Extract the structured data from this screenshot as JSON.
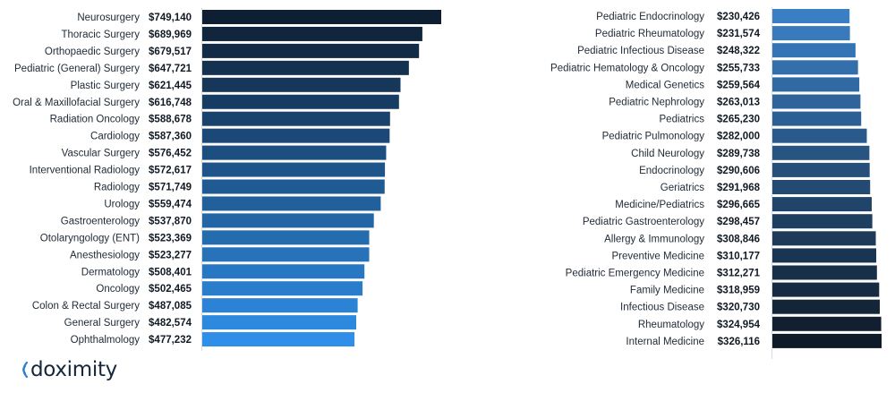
{
  "brand": {
    "name": "doximity",
    "logo_icon": "doximity-signal-icon"
  },
  "chart_data": [
    {
      "type": "bar",
      "orientation": "horizontal",
      "grid": false,
      "colors": {
        "start": "#0f1f33",
        "end": "#2f8fe8"
      },
      "xlim": [
        0,
        760000
      ],
      "categories": [
        "Neurosurgery",
        "Thoracic Surgery",
        "Orthopaedic Surgery",
        "Pediatric (General) Surgery",
        "Plastic Surgery",
        "Oral & Maxillofacial Surgery",
        "Radiation Oncology",
        "Cardiology",
        "Vascular Surgery",
        "Interventional Radiology",
        "Radiology",
        "Urology",
        "Gastroenterology",
        "Otolaryngology (ENT)",
        "Anesthesiology",
        "Dermatology",
        "Oncology",
        "Colon & Rectal Surgery",
        "General Surgery",
        "Ophthalmology"
      ],
      "values": [
        749140,
        689969,
        679517,
        647721,
        621445,
        616748,
        588678,
        587360,
        576452,
        572617,
        571749,
        559474,
        537870,
        523369,
        523277,
        508401,
        502465,
        487085,
        482574,
        477232
      ],
      "value_labels": [
        "$749,140",
        "$689,969",
        "$679,517",
        "$647,721",
        "$621,445",
        "$616,748",
        "$588,678",
        "$587,360",
        "$576,452",
        "$572,617",
        "$571,749",
        "$559,474",
        "$537,870",
        "$523,369",
        "$523,277",
        "$508,401",
        "$502,465",
        "$487,085",
        "$482,574",
        "$477,232"
      ]
    },
    {
      "type": "bar",
      "orientation": "horizontal",
      "grid": false,
      "colors": {
        "start": "#3a7fc4",
        "end": "#0f1a28"
      },
      "xlim": [
        0,
        340000
      ],
      "categories": [
        "Pediatric Endocrinology",
        "Pediatric Rheumatology",
        "Pediatric Infectious Disease",
        "Pediatric Hematology & Oncology",
        "Medical Genetics",
        "Pediatric Nephrology",
        "Pediatrics",
        "Pediatric Pulmonology",
        "Child Neurology",
        "Endocrinology",
        "Geriatrics",
        "Medicine/Pediatrics",
        "Pediatric Gastroenterology",
        "Allergy & Immunology",
        "Preventive Medicine",
        "Pediatric Emergency Medicine",
        "Family Medicine",
        "Infectious Disease",
        "Rheumatology",
        "Internal Medicine"
      ],
      "values": [
        230426,
        231574,
        248322,
        255733,
        259564,
        263013,
        265230,
        282000,
        289738,
        290606,
        291968,
        296665,
        298457,
        308846,
        310177,
        312271,
        318959,
        320730,
        324954,
        326116
      ],
      "value_labels": [
        "$230,426",
        "$231,574",
        "$248,322",
        "$255,733",
        "$259,564",
        "$263,013",
        "$265,230",
        "$282,000",
        "$289,738",
        "$290,606",
        "$291,968",
        "$296,665",
        "$298,457",
        "$308,846",
        "$310,177",
        "$312,271",
        "$318,959",
        "$320,730",
        "$324,954",
        "$326,116"
      ]
    }
  ]
}
